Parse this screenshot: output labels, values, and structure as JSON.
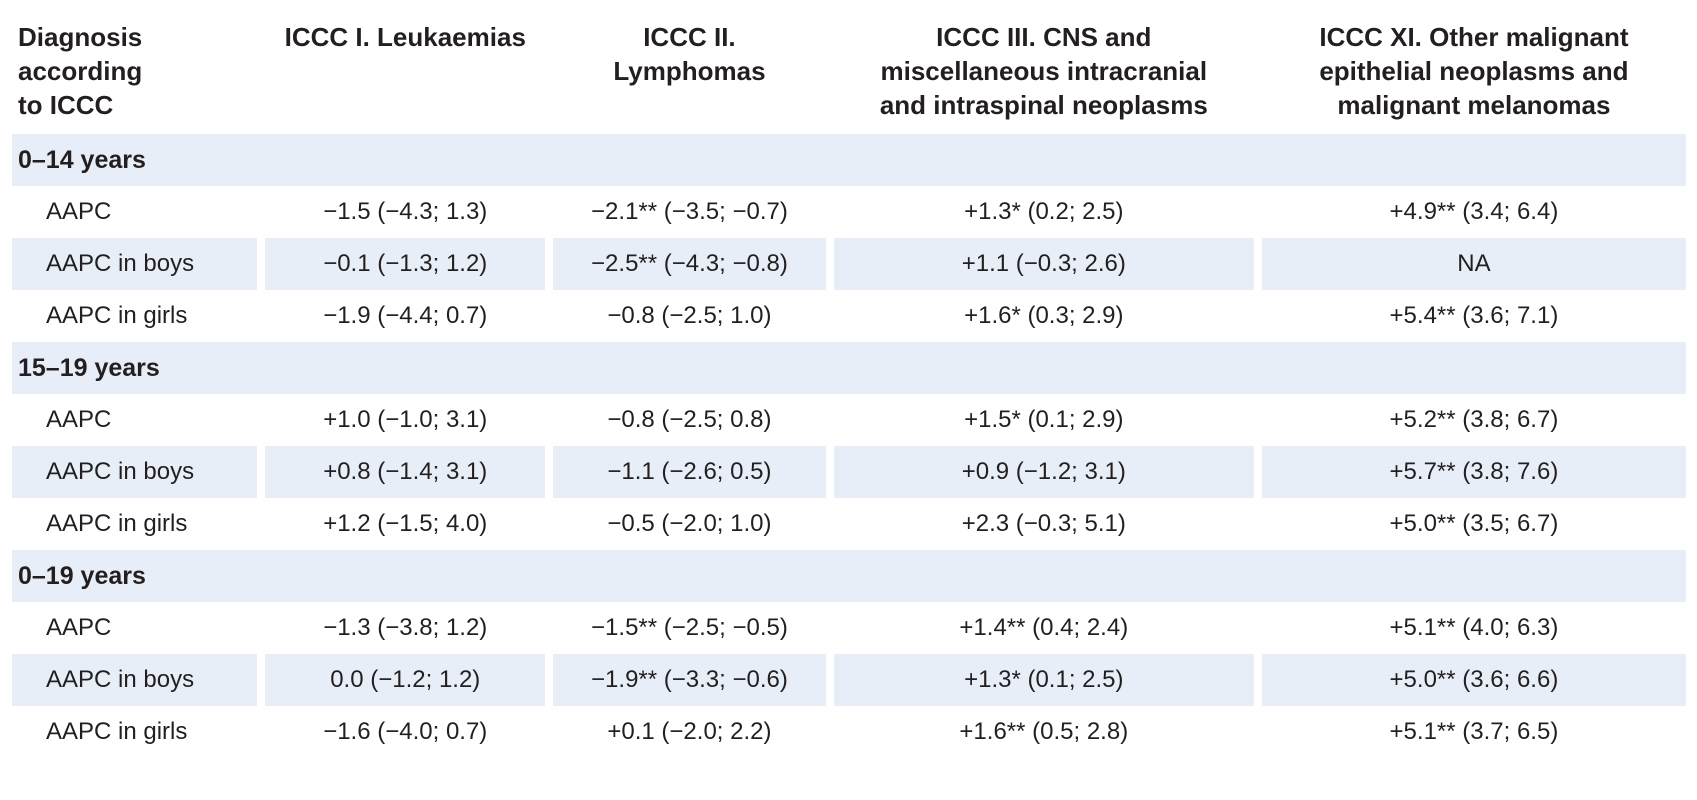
{
  "header": {
    "col0": [
      "Diagnosis",
      "according",
      "to ICCC"
    ],
    "col1": [
      "ICCC I. Leukaemias"
    ],
    "col2": [
      "ICCC II.",
      "Lymphomas"
    ],
    "col3": [
      "ICCC III. CNS and",
      "miscellaneous intracranial",
      "and intraspinal neoplasms"
    ],
    "col4": [
      "ICCC XI. Other malignant",
      "epithelial neoplasms and",
      "malignant melanomas"
    ]
  },
  "groups": [
    {
      "title": "0–14 years",
      "rows": [
        {
          "label": "AAPC",
          "c1": "−1.5 (−4.3; 1.3)",
          "c2": "−2.1** (−3.5; −0.7)",
          "c3": "+1.3* (0.2; 2.5)",
          "c4": "+4.9** (3.4; 6.4)"
        },
        {
          "label": "AAPC in boys",
          "c1": "−0.1 (−1.3; 1.2)",
          "c2": "−2.5** (−4.3; −0.8)",
          "c3": "+1.1 (−0.3; 2.6)",
          "c4": "NA"
        },
        {
          "label": "AAPC in girls",
          "c1": "−1.9 (−4.4; 0.7)",
          "c2": "−0.8 (−2.5; 1.0)",
          "c3": "+1.6* (0.3; 2.9)",
          "c4": "+5.4** (3.6; 7.1)"
        }
      ]
    },
    {
      "title": "15–19 years",
      "rows": [
        {
          "label": "AAPC",
          "c1": "+1.0 (−1.0; 3.1)",
          "c2": "−0.8 (−2.5; 0.8)",
          "c3": "+1.5* (0.1; 2.9)",
          "c4": "+5.2** (3.8; 6.7)"
        },
        {
          "label": "AAPC in boys",
          "c1": "+0.8 (−1.4; 3.1)",
          "c2": "−1.1 (−2.6; 0.5)",
          "c3": "+0.9 (−1.2; 3.1)",
          "c4": "+5.7** (3.8; 7.6)"
        },
        {
          "label": "AAPC in girls",
          "c1": "+1.2 (−1.5; 4.0)",
          "c2": "−0.5 (−2.0; 1.0)",
          "c3": "+2.3 (−0.3; 5.1)",
          "c4": "+5.0** (3.5; 6.7)"
        }
      ]
    },
    {
      "title": "0–19 years",
      "rows": [
        {
          "label": "AAPC",
          "c1": "−1.3 (−3.8; 1.2)",
          "c2": "−1.5** (−2.5; −0.5)",
          "c3": "+1.4** (0.4; 2.4)",
          "c4": "+5.1** (4.0; 6.3)"
        },
        {
          "label": "AAPC in boys",
          "c1": "0.0 (−1.2; 1.2)",
          "c2": "−1.9** (−3.3; −0.6)",
          "c3": "+1.3* (0.1; 2.5)",
          "c4": "+5.0** (3.6; 6.6)"
        },
        {
          "label": "AAPC in girls",
          "c1": "−1.6 (−4.0; 0.7)",
          "c2": "+0.1 (−2.0; 2.2)",
          "c3": "+1.6** (0.5; 2.8)",
          "c4": "+5.1** (3.7; 6.5)"
        }
      ]
    }
  ],
  "colors": {
    "shade": "#e8eef8",
    "text": "#231f20"
  }
}
